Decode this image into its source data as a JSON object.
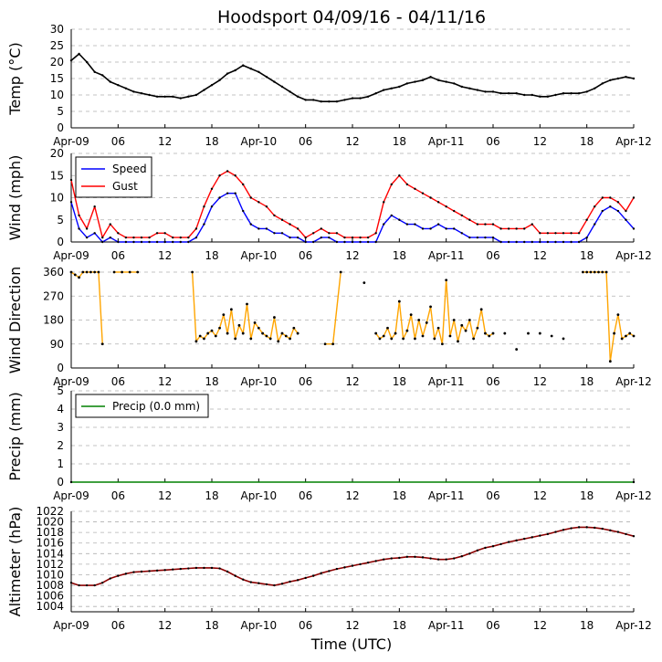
{
  "title": "Hoodsport 04/09/16 - 04/11/16",
  "xlabel": "Time (UTC)",
  "x_tick_labels": [
    "Apr-09",
    "06",
    "12",
    "18",
    "Apr-10",
    "06",
    "12",
    "18",
    "Apr-11",
    "06",
    "12",
    "18",
    "Apr-12"
  ],
  "chart_data": [
    {
      "type": "line",
      "name": "temp",
      "ylabel": "Temp (°C)",
      "ylim": [
        0,
        30
      ],
      "yticks": [
        0,
        5,
        10,
        15,
        20,
        25,
        30
      ],
      "grid": true,
      "color": "#000000",
      "x_hours": [
        0,
        1,
        2,
        3,
        4,
        5,
        6,
        7,
        8,
        9,
        10,
        11,
        12,
        13,
        14,
        15,
        16,
        17,
        18,
        19,
        20,
        21,
        22,
        23,
        24,
        25,
        26,
        27,
        28,
        29,
        30,
        31,
        32,
        33,
        34,
        35,
        36,
        37,
        38,
        39,
        40,
        41,
        42,
        43,
        44,
        45,
        46,
        47,
        48,
        49,
        50,
        51,
        52,
        53,
        54,
        55,
        56,
        57,
        58,
        59,
        60,
        61,
        62,
        63,
        64,
        65,
        66,
        67,
        68,
        69,
        70,
        71,
        72
      ],
      "values": [
        20.5,
        22.5,
        20.0,
        17.0,
        16.0,
        14.0,
        13.0,
        12.0,
        11.0,
        10.5,
        10.0,
        9.5,
        9.5,
        9.5,
        9.0,
        9.5,
        10.0,
        11.5,
        13.0,
        14.5,
        16.5,
        17.5,
        19.0,
        18.0,
        17.0,
        15.5,
        14.0,
        12.5,
        11.0,
        9.5,
        8.5,
        8.5,
        8.0,
        8.0,
        8.0,
        8.5,
        9.0,
        9.0,
        9.5,
        10.5,
        11.5,
        12.0,
        12.5,
        13.5,
        14.0,
        14.5,
        15.5,
        14.5,
        14.0,
        13.5,
        12.5,
        12.0,
        11.5,
        11.0,
        11.0,
        10.5,
        10.5,
        10.5,
        10.0,
        10.0,
        9.5,
        9.5,
        10.0,
        10.5,
        10.5,
        10.5,
        11.0,
        12.0,
        13.5,
        14.5,
        15.0,
        15.5,
        15.0
      ]
    },
    {
      "type": "line",
      "name": "wind",
      "ylabel": "Wind (mph)",
      "ylim": [
        0,
        20
      ],
      "yticks": [
        0,
        5,
        10,
        15,
        20
      ],
      "grid": true,
      "legend": "top-left",
      "series": [
        {
          "name": "Speed",
          "color": "#0000ff",
          "x_hours": [
            0,
            1,
            2,
            3,
            4,
            5,
            6,
            7,
            8,
            9,
            10,
            11,
            12,
            13,
            14,
            15,
            16,
            17,
            18,
            19,
            20,
            21,
            22,
            23,
            24,
            25,
            26,
            27,
            28,
            29,
            30,
            31,
            32,
            33,
            34,
            35,
            36,
            37,
            38,
            39,
            40,
            41,
            42,
            43,
            44,
            45,
            46,
            47,
            48,
            49,
            50,
            51,
            52,
            53,
            54,
            55,
            56,
            57,
            58,
            59,
            60,
            61,
            62,
            63,
            64,
            65,
            66,
            67,
            68,
            69,
            70,
            71,
            72
          ],
          "values": [
            9,
            3,
            1,
            2,
            0,
            1,
            0,
            0,
            0,
            0,
            0,
            0,
            0,
            0,
            0,
            0,
            1,
            4,
            8,
            10,
            11,
            11,
            7,
            4,
            3,
            3,
            2,
            2,
            1,
            1,
            0,
            0,
            1,
            1,
            0,
            0,
            0,
            0,
            0,
            0,
            4,
            6,
            5,
            4,
            4,
            3,
            3,
            4,
            3,
            3,
            2,
            1,
            1,
            1,
            1,
            0,
            0,
            0,
            0,
            0,
            0,
            0,
            0,
            0,
            0,
            0,
            1,
            4,
            7,
            8,
            7,
            5,
            3
          ]
        },
        {
          "name": "Gust",
          "color": "#ff0000",
          "x_hours": [
            0,
            1,
            2,
            3,
            4,
            5,
            6,
            7,
            8,
            9,
            10,
            11,
            12,
            13,
            14,
            15,
            16,
            17,
            18,
            19,
            20,
            21,
            22,
            23,
            24,
            25,
            26,
            27,
            28,
            29,
            30,
            31,
            32,
            33,
            34,
            35,
            36,
            37,
            38,
            39,
            40,
            41,
            42,
            43,
            44,
            45,
            46,
            47,
            48,
            49,
            50,
            51,
            52,
            53,
            54,
            55,
            56,
            57,
            58,
            59,
            60,
            61,
            62,
            63,
            64,
            65,
            66,
            67,
            68,
            69,
            70,
            71,
            72
          ],
          "values": [
            14,
            6,
            3,
            8,
            1,
            4,
            2,
            1,
            1,
            1,
            1,
            2,
            2,
            1,
            1,
            1,
            3,
            8,
            12,
            15,
            16,
            15,
            13,
            10,
            9,
            8,
            6,
            5,
            4,
            3,
            1,
            2,
            3,
            2,
            2,
            1,
            1,
            1,
            1,
            2,
            9,
            13,
            15,
            13,
            12,
            11,
            10,
            9,
            8,
            7,
            6,
            5,
            4,
            4,
            4,
            3,
            3,
            3,
            3,
            4,
            2,
            2,
            2,
            2,
            2,
            2,
            5,
            8,
            10,
            10,
            9,
            7,
            10
          ]
        }
      ]
    },
    {
      "type": "scatter",
      "name": "wind_direction",
      "ylabel": "Wind Direction",
      "ylim": [
        0,
        360
      ],
      "yticks": [
        0,
        90,
        180,
        270,
        360
      ],
      "grid": true,
      "color": "#ffa500",
      "x_hours": [
        0,
        0.5,
        1,
        1.5,
        2,
        2.5,
        3,
        3.5,
        4,
        5.5,
        6.5,
        7.5,
        8.5,
        15.5,
        16,
        16.5,
        17,
        17.5,
        18,
        18.5,
        19,
        19.5,
        20,
        20.5,
        21,
        21.5,
        22,
        22.5,
        23,
        23.5,
        24,
        24.5,
        25,
        25.5,
        26,
        26.5,
        27,
        27.5,
        28,
        28.5,
        29,
        32.5,
        33.5,
        34.5,
        37.5,
        39,
        39.5,
        40,
        40.5,
        41,
        41.5,
        42,
        42.5,
        43,
        43.5,
        44,
        44.5,
        45,
        45.5,
        46,
        46.5,
        47,
        47.5,
        48,
        48.5,
        49,
        49.5,
        50,
        50.5,
        51,
        51.5,
        52,
        52.5,
        53,
        53.5,
        54,
        55.5,
        57,
        58.5,
        60,
        61.5,
        63,
        65.5,
        66,
        66.5,
        67,
        67.5,
        68,
        68.5,
        69,
        69.5,
        70,
        70.5,
        71,
        71.5,
        72
      ],
      "values": [
        360,
        350,
        340,
        360,
        360,
        360,
        360,
        360,
        90,
        360,
        360,
        360,
        360,
        360,
        100,
        120,
        110,
        130,
        140,
        120,
        150,
        200,
        130,
        220,
        110,
        160,
        130,
        240,
        110,
        170,
        150,
        130,
        120,
        110,
        190,
        100,
        130,
        120,
        110,
        150,
        130,
        90,
        90,
        360,
        320,
        130,
        110,
        120,
        150,
        110,
        130,
        250,
        110,
        140,
        200,
        110,
        180,
        120,
        170,
        230,
        110,
        150,
        90,
        330,
        120,
        180,
        100,
        160,
        140,
        180,
        110,
        150,
        220,
        130,
        120,
        130,
        130,
        70,
        130,
        130,
        120,
        110,
        360,
        360,
        360,
        360,
        360,
        360,
        360,
        25,
        130,
        200,
        110,
        120,
        130,
        120
      ]
    },
    {
      "type": "line",
      "name": "precip",
      "ylabel": "Precip (mm)",
      "ylim": [
        0,
        5
      ],
      "yticks": [
        0,
        1,
        2,
        3,
        4,
        5
      ],
      "grid": true,
      "legend": "top-left",
      "series": [
        {
          "name": "Precip (0.0 mm)",
          "color": "#008000",
          "x_hours": [
            0,
            72
          ],
          "values": [
            0,
            0
          ]
        }
      ]
    },
    {
      "type": "line",
      "name": "altimeter",
      "ylabel": "Altimeter (hPa)",
      "ylim": [
        1003,
        1022
      ],
      "yticks": [
        1004,
        1006,
        1008,
        1010,
        1012,
        1014,
        1016,
        1018,
        1020,
        1022
      ],
      "grid": true,
      "color": "#8b0000",
      "x_hours": [
        0,
        1,
        2,
        3,
        4,
        5,
        6,
        7,
        8,
        9,
        10,
        11,
        12,
        13,
        14,
        15,
        16,
        17,
        18,
        19,
        20,
        21,
        22,
        23,
        24,
        25,
        26,
        27,
        28,
        29,
        30,
        31,
        32,
        33,
        34,
        35,
        36,
        37,
        38,
        39,
        40,
        41,
        42,
        43,
        44,
        45,
        46,
        47,
        48,
        49,
        50,
        51,
        52,
        53,
        54,
        55,
        56,
        57,
        58,
        59,
        60,
        61,
        62,
        63,
        64,
        65,
        66,
        67,
        68,
        69,
        70,
        71,
        72
      ],
      "values": [
        1008.5,
        1008.0,
        1008.0,
        1008.0,
        1008.5,
        1009.3,
        1009.8,
        1010.2,
        1010.5,
        1010.6,
        1010.7,
        1010.8,
        1010.9,
        1011.0,
        1011.1,
        1011.2,
        1011.3,
        1011.3,
        1011.3,
        1011.2,
        1010.6,
        1009.8,
        1009.1,
        1008.6,
        1008.4,
        1008.2,
        1008.0,
        1008.3,
        1008.7,
        1009.0,
        1009.4,
        1009.8,
        1010.3,
        1010.7,
        1011.1,
        1011.4,
        1011.7,
        1012.0,
        1012.3,
        1012.6,
        1012.9,
        1013.1,
        1013.2,
        1013.4,
        1013.4,
        1013.3,
        1013.1,
        1012.9,
        1012.9,
        1013.1,
        1013.5,
        1014.0,
        1014.6,
        1015.1,
        1015.4,
        1015.8,
        1016.2,
        1016.5,
        1016.8,
        1017.1,
        1017.4,
        1017.7,
        1018.1,
        1018.5,
        1018.8,
        1019.0,
        1019.0,
        1018.9,
        1018.7,
        1018.4,
        1018.1,
        1017.7,
        1017.3
      ]
    }
  ]
}
